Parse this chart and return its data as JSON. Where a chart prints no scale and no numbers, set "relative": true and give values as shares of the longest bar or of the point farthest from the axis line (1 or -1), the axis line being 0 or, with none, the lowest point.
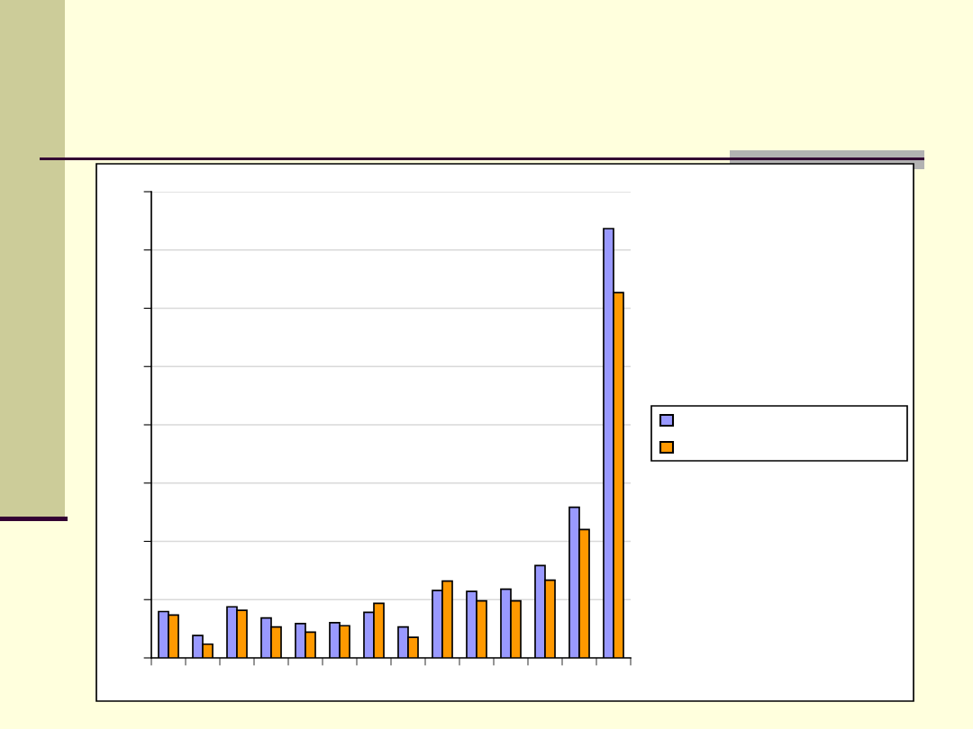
{
  "chart_data": {
    "type": "bar",
    "relative": true,
    "categories": [
      null,
      null,
      null,
      null,
      null,
      null,
      null,
      null,
      null,
      null,
      null,
      null,
      null,
      null
    ],
    "series": [
      {
        "color": "#9999ff",
        "values": [
          0.108,
          0.052,
          0.119,
          0.093,
          0.08,
          0.082,
          0.106,
          0.072,
          0.157,
          0.155,
          0.16,
          0.215,
          0.351,
          1.0
        ]
      },
      {
        "color": "#ff9900",
        "values": [
          0.1,
          0.032,
          0.111,
          0.072,
          0.06,
          0.075,
          0.127,
          0.048,
          0.179,
          0.133,
          0.133,
          0.181,
          0.299,
          0.851
        ]
      }
    ],
    "grid": "y"
  }
}
